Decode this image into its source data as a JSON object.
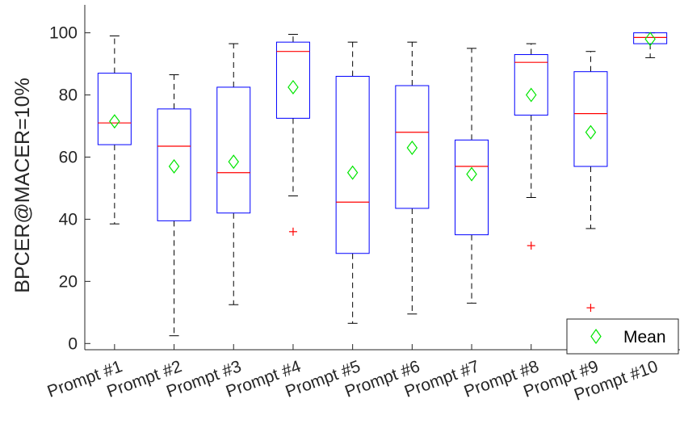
{
  "chart_data": {
    "type": "boxplot",
    "ylabel": "BPCER@MACER=10%",
    "ylim": [
      -2,
      109
    ],
    "yticks": [
      0,
      20,
      40,
      60,
      80,
      100
    ],
    "categories": [
      "Prompt #1",
      "Prompt #2",
      "Prompt #3",
      "Prompt #4",
      "Prompt #5",
      "Prompt #6",
      "Prompt #7",
      "Prompt #8",
      "Prompt #9",
      "Prompt #10"
    ],
    "boxes": [
      {
        "whisker_low": 38.5,
        "q1": 64,
        "median": 71,
        "q3": 87,
        "whisker_high": 99,
        "mean": 71.5,
        "outliers": []
      },
      {
        "whisker_low": 2.5,
        "q1": 39.5,
        "median": 63.5,
        "q3": 75.5,
        "whisker_high": 86.5,
        "mean": 57,
        "outliers": []
      },
      {
        "whisker_low": 12.5,
        "q1": 42,
        "median": 55,
        "q3": 82.5,
        "whisker_high": 96.5,
        "mean": 58.5,
        "outliers": []
      },
      {
        "whisker_low": 47.5,
        "q1": 72.5,
        "median": 94,
        "q3": 97,
        "whisker_high": 99.5,
        "mean": 82.5,
        "outliers": [
          36
        ]
      },
      {
        "whisker_low": 6.5,
        "q1": 29,
        "median": 45.5,
        "q3": 86,
        "whisker_high": 97,
        "mean": 55,
        "outliers": []
      },
      {
        "whisker_low": 9.5,
        "q1": 43.5,
        "median": 68,
        "q3": 83,
        "whisker_high": 97,
        "mean": 63,
        "outliers": []
      },
      {
        "whisker_low": 13,
        "q1": 35,
        "median": 57,
        "q3": 65.5,
        "whisker_high": 95,
        "mean": 54.5,
        "outliers": []
      },
      {
        "whisker_low": 47,
        "q1": 73.5,
        "median": 90.5,
        "q3": 93,
        "whisker_high": 96.5,
        "mean": 80,
        "outliers": [
          31.5
        ]
      },
      {
        "whisker_low": 37,
        "q1": 57,
        "median": 74,
        "q3": 87.5,
        "whisker_high": 94,
        "mean": 68,
        "outliers": [
          11.5
        ]
      },
      {
        "whisker_low": 92,
        "q1": 96.5,
        "median": 98.5,
        "q3": 100,
        "whisker_high": 100,
        "mean": 98,
        "outliers": []
      }
    ],
    "legend": {
      "entries": [
        "Mean"
      ],
      "placement": "bottom-right"
    },
    "grid": false,
    "colors": {
      "box": "#0000ff",
      "median": "#ff0000",
      "whisker": "#000000",
      "mean": "#00e600",
      "outlier": "#ff0000",
      "axis": "#262626"
    }
  }
}
